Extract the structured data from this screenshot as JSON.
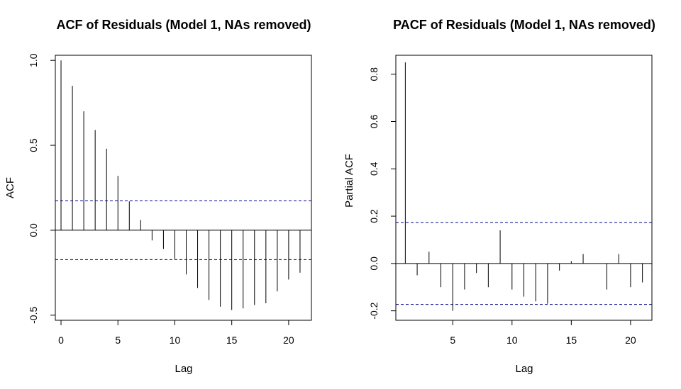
{
  "chart_data": [
    {
      "type": "bar",
      "subtype": "correlogram",
      "title": "ACF of Residuals (Model 1, NAs removed)",
      "xlabel": "Lag",
      "ylabel": "ACF",
      "xlim": [
        -0.5,
        22
      ],
      "ylim": [
        -0.53,
        1.03
      ],
      "xticks": [
        "0",
        "5",
        "10",
        "15",
        "20"
      ],
      "yticks": [
        "-0.5",
        "0.0",
        "0.5",
        "1.0"
      ],
      "x": [
        0,
        1,
        2,
        3,
        4,
        5,
        6,
        7,
        8,
        9,
        10,
        11,
        12,
        13,
        14,
        15,
        16,
        17,
        18,
        19,
        20,
        21
      ],
      "values": [
        1.0,
        0.85,
        0.7,
        0.59,
        0.48,
        0.32,
        0.17,
        0.06,
        -0.06,
        -0.11,
        -0.17,
        -0.26,
        -0.34,
        -0.41,
        -0.45,
        -0.47,
        -0.46,
        -0.44,
        -0.43,
        -0.36,
        -0.29,
        -0.25
      ],
      "confidence_bounds": [
        0.173,
        -0.173
      ],
      "bound_color": "#00008B",
      "zero_line": true,
      "grid": false
    },
    {
      "type": "bar",
      "subtype": "correlogram",
      "title": "PACF of Residuals (Model 1, NAs removed)",
      "xlabel": "Lag",
      "ylabel": "Partial ACF",
      "xlim": [
        0.2,
        21.8
      ],
      "ylim": [
        -0.24,
        0.88
      ],
      "xticks": [
        "5",
        "10",
        "15",
        "20"
      ],
      "yticks": [
        "-0.2",
        "0.0",
        "0.2",
        "0.4",
        "0.6",
        "0.8"
      ],
      "x": [
        1,
        2,
        3,
        4,
        5,
        6,
        7,
        8,
        9,
        10,
        11,
        12,
        13,
        14,
        15,
        16,
        17,
        18,
        19,
        20,
        21
      ],
      "values": [
        0.85,
        -0.05,
        0.05,
        -0.1,
        -0.2,
        -0.11,
        -0.04,
        -0.1,
        0.14,
        -0.11,
        -0.14,
        -0.16,
        -0.17,
        -0.03,
        0.01,
        0.04,
        0.0,
        -0.11,
        0.04,
        -0.1,
        -0.08
      ],
      "confidence_bounds": [
        0.173,
        -0.173
      ],
      "bound_color": "#00008B",
      "zero_line": true,
      "grid": false
    }
  ]
}
